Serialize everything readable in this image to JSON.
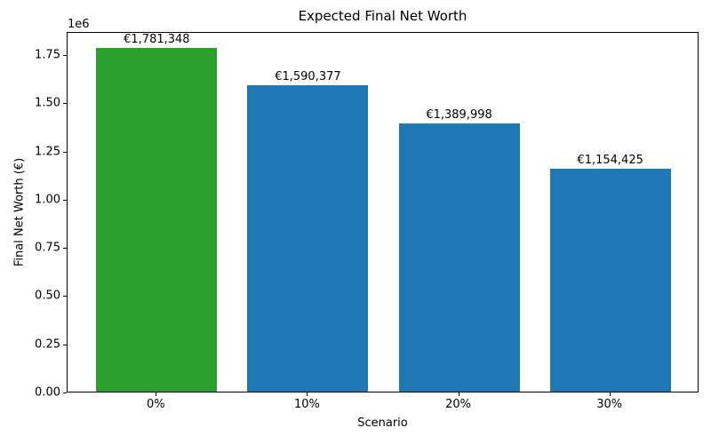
{
  "chart_data": {
    "type": "bar",
    "title": "Expected Final Net Worth",
    "xlabel": "Scenario",
    "ylabel": "Final Net Worth (€)",
    "y_offset_text": "1e6",
    "categories": [
      "0%",
      "10%",
      "20%",
      "30%"
    ],
    "values": [
      1781348,
      1590377,
      1389998,
      1154425
    ],
    "bar_value_labels": [
      "€1,781,348",
      "€1,590,377",
      "€1,389,998",
      "€1,154,425"
    ],
    "bar_colors": [
      "#2ca02c",
      "#1f77b4",
      "#1f77b4",
      "#1f77b4"
    ],
    "highlight_color": "#2ca02c",
    "default_bar_color": "#1f77b4",
    "ylim": [
      0,
      1870415
    ],
    "yticks": [
      0,
      250000,
      500000,
      750000,
      1000000,
      1250000,
      1500000,
      1750000
    ],
    "ytick_labels": [
      "0.00",
      "0.25",
      "0.50",
      "0.75",
      "1.00",
      "1.25",
      "1.50",
      "1.75"
    ],
    "grid": false,
    "legend": null,
    "spine_color": "#000000",
    "background_color": "#ffffff"
  }
}
